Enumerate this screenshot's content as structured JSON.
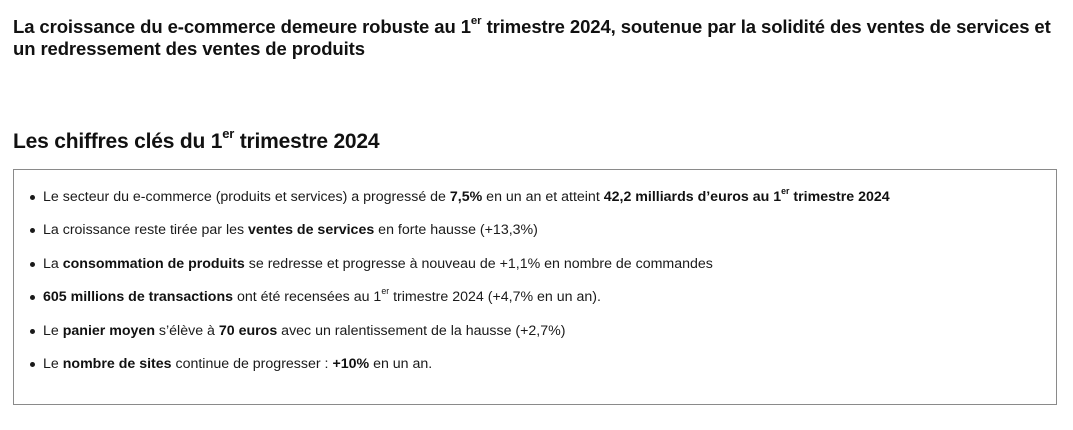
{
  "headline": {
    "part1": "La croissance du e-commerce demeure robuste au 1",
    "sup": "er",
    "part2": " trimestre 2024, soutenue par la solidité des ventes de services et un redressement des ventes de produits"
  },
  "subheading": {
    "part1": "Les chiffres clés du 1",
    "sup": "er",
    "part2": " trimestre 2024"
  },
  "key_figures": [
    {
      "t1": "Le secteur du e-commerce (produits et services) a progressé de ",
      "b1": "7,5%",
      "t2": " en un an et atteint ",
      "b2": "42,2 milliards d’euros au 1",
      "b2sup": "er",
      "b3": " trimestre 2024"
    },
    {
      "t1": "La croissance reste tirée par les ",
      "b1": "ventes de services",
      "t2": " en forte hausse (+13,3%)"
    },
    {
      "t1": "La ",
      "b1": "consommation de produits",
      "t2": " se redresse et progresse à nouveau de +1,1% en nombre de commandes"
    },
    {
      "b1": "605 millions de transactions",
      "t1": " ont été recensées au 1",
      "t1sup": "er",
      "t2": " trimestre 2024 (+4,7% en un an)."
    },
    {
      "t1": "Le ",
      "b1": "panier moyen",
      "t2": " s’élève à ",
      "b2": "70 euros",
      "t3": " avec un ralentissement de la hausse (+2,7%)"
    },
    {
      "t1": "Le ",
      "b1": "nombre de sites",
      "t2": " continue de progresser : ",
      "b2": "+10%",
      "t3": " en un an."
    }
  ]
}
